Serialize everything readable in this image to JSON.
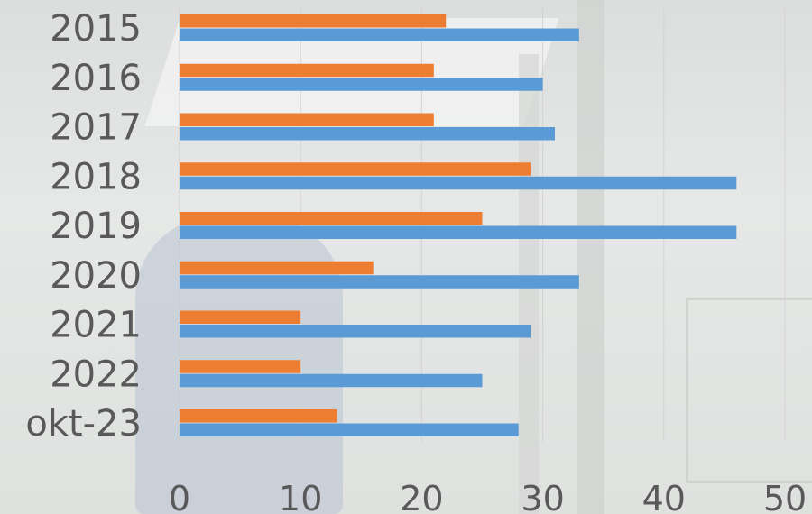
{
  "chart_data": {
    "type": "bar",
    "orientation": "horizontal",
    "categories": [
      "2015",
      "2016",
      "2017",
      "2018",
      "2019",
      "2020",
      "2021",
      "2022",
      "okt-23"
    ],
    "series": [
      {
        "values": [
          22,
          21,
          21,
          29,
          25,
          16,
          10,
          10,
          13
        ],
        "color": "#ed7d31"
      },
      {
        "values": [
          33,
          30,
          31,
          46,
          46,
          33,
          29,
          25,
          28
        ],
        "color": "#5b9bd5"
      }
    ],
    "xticks": [
      "0",
      "10",
      "20",
      "30",
      "40",
      "50"
    ],
    "xlim": [
      0,
      50
    ],
    "grid": true,
    "legend": "none",
    "title": "",
    "xlabel": "",
    "ylabel": ""
  }
}
